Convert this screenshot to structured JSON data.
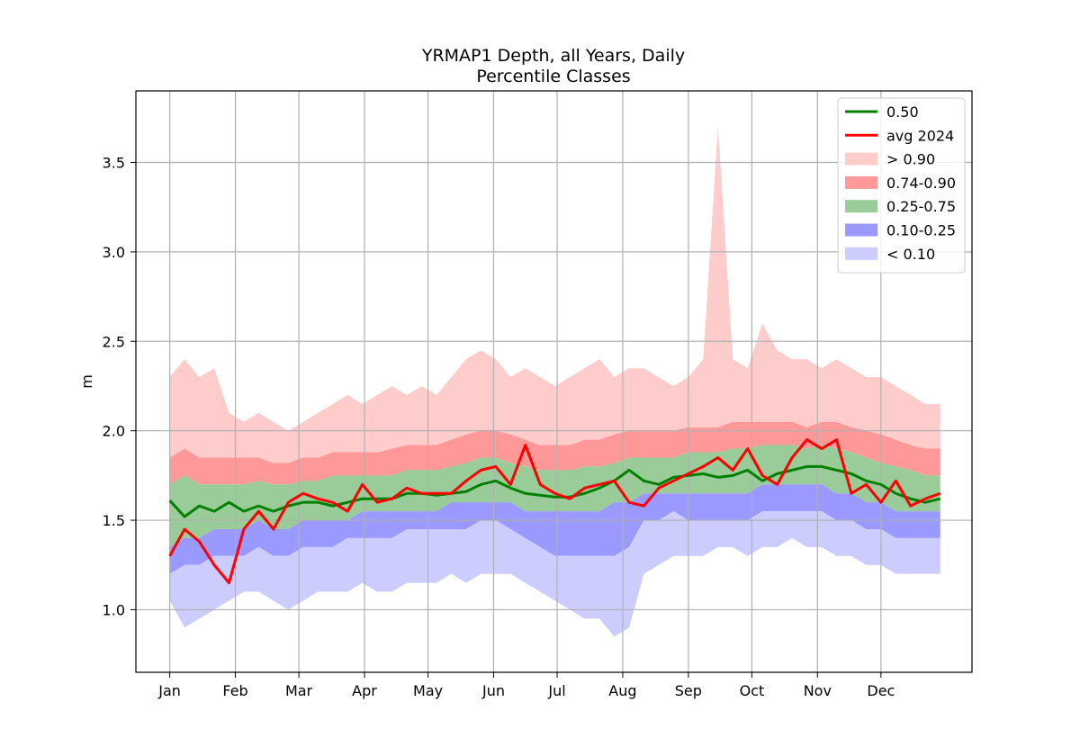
{
  "chart_data": {
    "type": "area",
    "title": "YRMAP1 Depth, all Years, Daily",
    "subtitle": "Percentile Classes",
    "xlabel": "",
    "ylabel": "m",
    "ylim": [
      0.65,
      3.9
    ],
    "xlim": [
      -15,
      380
    ],
    "grid": true,
    "legend_position": "top-right",
    "y_ticks": [
      1.0,
      1.5,
      2.0,
      2.5,
      3.0,
      3.5
    ],
    "y_tick_labels": [
      "1.0",
      "1.5",
      "2.0",
      "2.5",
      "3.0",
      "3.5"
    ],
    "x_ticks": [
      {
        "day": 1,
        "label": "Jan"
      },
      {
        "day": 32,
        "label": "Feb"
      },
      {
        "day": 62,
        "label": "Mar"
      },
      {
        "day": 93,
        "label": "Apr"
      },
      {
        "day": 123,
        "label": "May"
      },
      {
        "day": 154,
        "label": "Jun"
      },
      {
        "day": 184,
        "label": "Jul"
      },
      {
        "day": 215,
        "label": "Aug"
      },
      {
        "day": 246,
        "label": "Sep"
      },
      {
        "day": 276,
        "label": "Oct"
      },
      {
        "day": 307,
        "label": "Nov"
      },
      {
        "day": 337,
        "label": "Dec"
      }
    ],
    "colors": {
      "median": "#008000",
      "avg2024": "#ff0000",
      "gt090": "#ffcccc",
      "p74_90": "#ff9999",
      "p25_75": "#99cc99",
      "p10_25": "#9999ff",
      "lt010": "#ccccff"
    },
    "legend": [
      {
        "label": "0.50",
        "kind": "line",
        "color": "#008000"
      },
      {
        "label": "avg 2024",
        "kind": "line",
        "color": "#ff0000"
      },
      {
        "label": "> 0.90",
        "kind": "patch",
        "color": "#ffcccc"
      },
      {
        "label": "0.74-0.90",
        "kind": "patch",
        "color": "#ff9999"
      },
      {
        "label": "0.25-0.75",
        "kind": "patch",
        "color": "#99cc99"
      },
      {
        "label": "0.10-0.25",
        "kind": "patch",
        "color": "#9999ff"
      },
      {
        "label": "< 0.10",
        "kind": "patch",
        "color": "#ccccff"
      }
    ],
    "x": [
      1,
      8,
      15,
      22,
      29,
      36,
      43,
      50,
      57,
      64,
      71,
      78,
      85,
      92,
      99,
      106,
      113,
      120,
      127,
      134,
      141,
      148,
      155,
      162,
      169,
      176,
      183,
      190,
      197,
      204,
      211,
      218,
      225,
      232,
      239,
      246,
      253,
      260,
      267,
      274,
      281,
      288,
      295,
      302,
      309,
      316,
      323,
      330,
      337,
      344,
      351,
      358,
      365
    ],
    "series": [
      {
        "name": "min",
        "values": [
          1.05,
          0.9,
          0.95,
          1.0,
          1.05,
          1.1,
          1.1,
          1.05,
          1.0,
          1.05,
          1.1,
          1.1,
          1.1,
          1.15,
          1.1,
          1.1,
          1.15,
          1.15,
          1.15,
          1.2,
          1.15,
          1.2,
          1.2,
          1.2,
          1.15,
          1.1,
          1.05,
          1.0,
          0.95,
          0.95,
          0.85,
          0.9,
          1.2,
          1.25,
          1.3,
          1.3,
          1.3,
          1.35,
          1.35,
          1.3,
          1.35,
          1.35,
          1.4,
          1.35,
          1.35,
          1.3,
          1.3,
          1.25,
          1.25,
          1.2,
          1.2,
          1.2,
          1.2
        ]
      },
      {
        "name": "0.10",
        "values": [
          1.2,
          1.25,
          1.25,
          1.3,
          1.3,
          1.3,
          1.35,
          1.3,
          1.3,
          1.35,
          1.35,
          1.35,
          1.4,
          1.4,
          1.4,
          1.4,
          1.45,
          1.45,
          1.45,
          1.45,
          1.45,
          1.5,
          1.5,
          1.45,
          1.4,
          1.35,
          1.3,
          1.3,
          1.3,
          1.3,
          1.3,
          1.35,
          1.5,
          1.5,
          1.55,
          1.5,
          1.5,
          1.5,
          1.5,
          1.5,
          1.55,
          1.55,
          1.55,
          1.55,
          1.55,
          1.5,
          1.5,
          1.45,
          1.45,
          1.4,
          1.4,
          1.4,
          1.4
        ]
      },
      {
        "name": "0.25",
        "values": [
          1.35,
          1.4,
          1.4,
          1.45,
          1.45,
          1.45,
          1.5,
          1.45,
          1.45,
          1.5,
          1.5,
          1.5,
          1.5,
          1.55,
          1.55,
          1.55,
          1.55,
          1.55,
          1.55,
          1.6,
          1.6,
          1.6,
          1.6,
          1.6,
          1.55,
          1.55,
          1.55,
          1.55,
          1.55,
          1.55,
          1.6,
          1.6,
          1.65,
          1.65,
          1.65,
          1.65,
          1.65,
          1.65,
          1.65,
          1.65,
          1.7,
          1.7,
          1.7,
          1.7,
          1.7,
          1.65,
          1.65,
          1.6,
          1.6,
          1.55,
          1.55,
          1.55,
          1.55
        ]
      },
      {
        "name": "0.75",
        "values": [
          1.7,
          1.75,
          1.7,
          1.7,
          1.7,
          1.7,
          1.72,
          1.7,
          1.7,
          1.72,
          1.72,
          1.75,
          1.75,
          1.75,
          1.75,
          1.75,
          1.78,
          1.78,
          1.78,
          1.8,
          1.82,
          1.85,
          1.85,
          1.82,
          1.8,
          1.78,
          1.78,
          1.78,
          1.8,
          1.8,
          1.82,
          1.85,
          1.85,
          1.85,
          1.85,
          1.88,
          1.88,
          1.88,
          1.9,
          1.9,
          1.92,
          1.92,
          1.92,
          1.9,
          1.92,
          1.9,
          1.88,
          1.85,
          1.82,
          1.8,
          1.78,
          1.75,
          1.75
        ]
      },
      {
        "name": "0.90",
        "values": [
          1.85,
          1.9,
          1.85,
          1.85,
          1.85,
          1.85,
          1.85,
          1.82,
          1.82,
          1.85,
          1.85,
          1.88,
          1.88,
          1.88,
          1.88,
          1.9,
          1.92,
          1.92,
          1.92,
          1.95,
          1.98,
          2.0,
          2.0,
          1.98,
          1.95,
          1.92,
          1.92,
          1.92,
          1.95,
          1.95,
          1.98,
          2.0,
          2.0,
          2.0,
          2.0,
          2.02,
          2.02,
          2.02,
          2.05,
          2.05,
          2.05,
          2.05,
          2.05,
          2.02,
          2.05,
          2.05,
          2.02,
          2.0,
          1.98,
          1.95,
          1.92,
          1.9,
          1.9
        ]
      },
      {
        "name": "max",
        "values": [
          2.3,
          2.4,
          2.3,
          2.35,
          2.1,
          2.05,
          2.1,
          2.05,
          2.0,
          2.05,
          2.1,
          2.15,
          2.2,
          2.15,
          2.2,
          2.25,
          2.2,
          2.25,
          2.2,
          2.3,
          2.4,
          2.45,
          2.4,
          2.3,
          2.35,
          2.3,
          2.25,
          2.3,
          2.35,
          2.4,
          2.3,
          2.35,
          2.35,
          2.3,
          2.25,
          2.3,
          2.4,
          3.7,
          2.4,
          2.35,
          2.6,
          2.45,
          2.4,
          2.4,
          2.35,
          2.4,
          2.35,
          2.3,
          2.3,
          2.25,
          2.2,
          2.15,
          2.15
        ]
      },
      {
        "name": "0.50",
        "values": [
          1.61,
          1.52,
          1.58,
          1.55,
          1.6,
          1.55,
          1.58,
          1.55,
          1.58,
          1.6,
          1.6,
          1.58,
          1.6,
          1.62,
          1.62,
          1.62,
          1.65,
          1.65,
          1.64,
          1.65,
          1.66,
          1.7,
          1.72,
          1.68,
          1.65,
          1.64,
          1.63,
          1.63,
          1.65,
          1.68,
          1.72,
          1.78,
          1.72,
          1.7,
          1.74,
          1.75,
          1.76,
          1.74,
          1.75,
          1.78,
          1.72,
          1.76,
          1.78,
          1.8,
          1.8,
          1.78,
          1.76,
          1.72,
          1.7,
          1.65,
          1.62,
          1.6,
          1.62
        ]
      },
      {
        "name": "avg 2024",
        "values": [
          1.3,
          1.45,
          1.38,
          1.25,
          1.15,
          1.45,
          1.55,
          1.45,
          1.6,
          1.65,
          1.62,
          1.6,
          1.55,
          1.7,
          1.6,
          1.62,
          1.68,
          1.65,
          1.65,
          1.65,
          1.72,
          1.78,
          1.8,
          1.7,
          1.92,
          1.7,
          1.65,
          1.62,
          1.68,
          1.7,
          1.72,
          1.6,
          1.58,
          1.68,
          1.72,
          1.76,
          1.8,
          1.85,
          1.78,
          1.9,
          1.75,
          1.7,
          1.85,
          1.95,
          1.9,
          1.95,
          1.65,
          1.7,
          1.6,
          1.72,
          1.58,
          1.62,
          1.65
        ]
      }
    ]
  }
}
